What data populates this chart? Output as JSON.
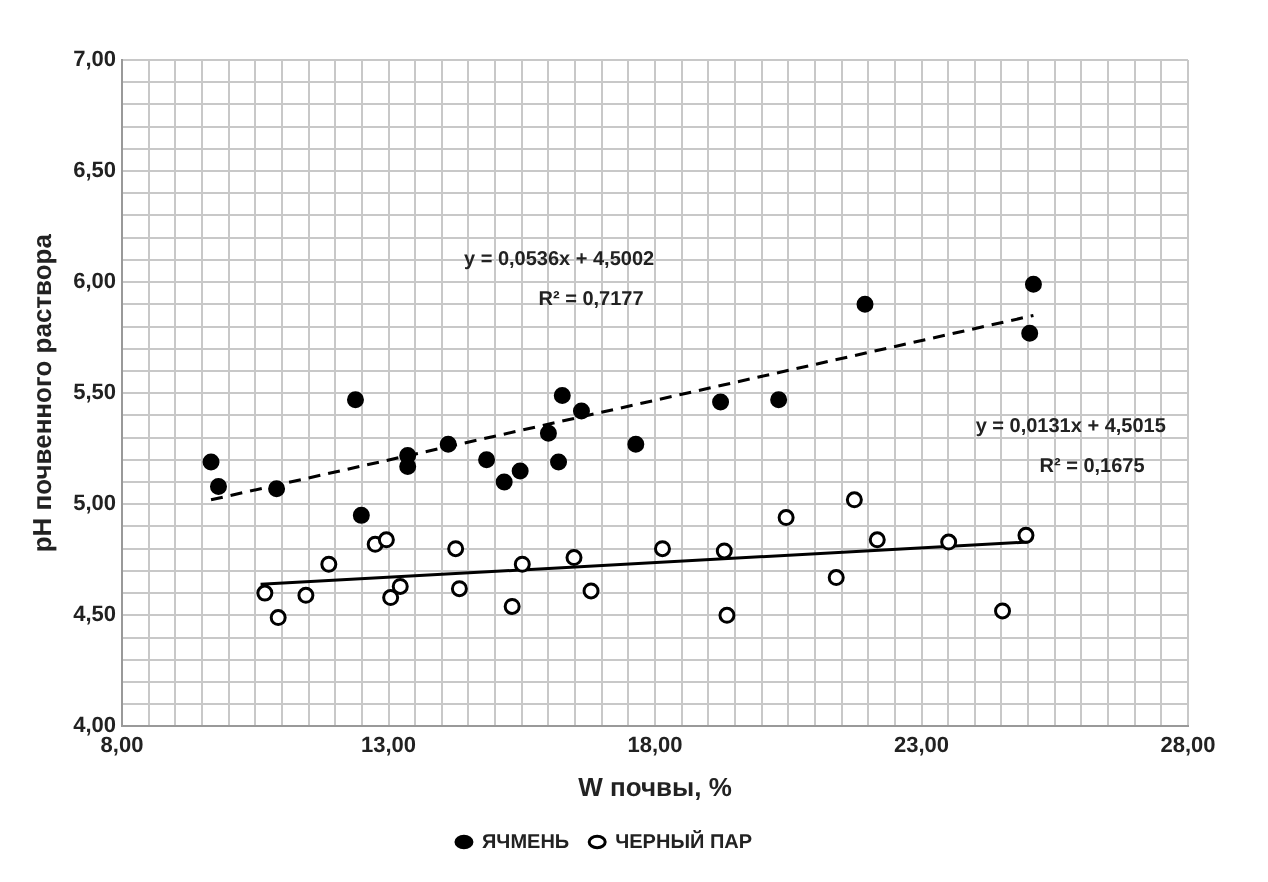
{
  "chart_data": {
    "type": "scatter",
    "xlabel": "W почвы, %",
    "ylabel": "pH почвенного раствора",
    "xlim": [
      8,
      28
    ],
    "xticks": [
      {
        "value": 8,
        "label": "8,00"
      },
      {
        "value": 8.5,
        "label": null
      },
      {
        "value": 9,
        "label": null
      },
      {
        "value": 9.5,
        "label": null
      },
      {
        "value": 10,
        "label": null
      },
      {
        "value": 10.5,
        "label": null
      },
      {
        "value": 11,
        "label": null
      },
      {
        "value": 11.5,
        "label": null
      },
      {
        "value": 12,
        "label": null
      },
      {
        "value": 12.5,
        "label": null
      },
      {
        "value": 13,
        "label": "13,00"
      },
      {
        "value": 13.5,
        "label": null
      },
      {
        "value": 14,
        "label": null
      },
      {
        "value": 14.5,
        "label": null
      },
      {
        "value": 15,
        "label": null
      },
      {
        "value": 15.5,
        "label": null
      },
      {
        "value": 16,
        "label": null
      },
      {
        "value": 16.5,
        "label": null
      },
      {
        "value": 17,
        "label": null
      },
      {
        "value": 17.5,
        "label": null
      },
      {
        "value": 18,
        "label": "18,00"
      },
      {
        "value": 18.5,
        "label": null
      },
      {
        "value": 19,
        "label": null
      },
      {
        "value": 19.5,
        "label": null
      },
      {
        "value": 20,
        "label": null
      },
      {
        "value": 20.5,
        "label": null
      },
      {
        "value": 21,
        "label": null
      },
      {
        "value": 21.5,
        "label": null
      },
      {
        "value": 22,
        "label": null
      },
      {
        "value": 22.5,
        "label": null
      },
      {
        "value": 23,
        "label": "23,00"
      },
      {
        "value": 23.5,
        "label": null
      },
      {
        "value": 24,
        "label": null
      },
      {
        "value": 24.5,
        "label": null
      },
      {
        "value": 25,
        "label": null
      },
      {
        "value": 25.5,
        "label": null
      },
      {
        "value": 26,
        "label": null
      },
      {
        "value": 26.5,
        "label": null
      },
      {
        "value": 27,
        "label": null
      },
      {
        "value": 27.5,
        "label": null
      },
      {
        "value": 28,
        "label": "28,00"
      }
    ],
    "ylim": [
      4,
      7
    ],
    "yticks": [
      {
        "value": 4,
        "label": "4,00"
      },
      {
        "value": 4.1,
        "label": null
      },
      {
        "value": 4.2,
        "label": null
      },
      {
        "value": 4.3,
        "label": null
      },
      {
        "value": 4.4,
        "label": null
      },
      {
        "value": 4.5,
        "label": "4,50"
      },
      {
        "value": 4.6,
        "label": null
      },
      {
        "value": 4.7,
        "label": null
      },
      {
        "value": 4.8,
        "label": null
      },
      {
        "value": 4.9,
        "label": null
      },
      {
        "value": 5,
        "label": "5,00"
      },
      {
        "value": 5.1,
        "label": null
      },
      {
        "value": 5.2,
        "label": null
      },
      {
        "value": 5.3,
        "label": null
      },
      {
        "value": 5.4,
        "label": null
      },
      {
        "value": 5.5,
        "label": "5,50"
      },
      {
        "value": 5.6,
        "label": null
      },
      {
        "value": 5.7,
        "label": null
      },
      {
        "value": 5.8,
        "label": null
      },
      {
        "value": 5.9,
        "label": null
      },
      {
        "value": 6,
        "label": "6,00"
      },
      {
        "value": 6.1,
        "label": null
      },
      {
        "value": 6.2,
        "label": null
      },
      {
        "value": 6.3,
        "label": null
      },
      {
        "value": 6.4,
        "label": null
      },
      {
        "value": 6.5,
        "label": "6,50"
      },
      {
        "value": 6.6,
        "label": null
      },
      {
        "value": 6.7,
        "label": null
      },
      {
        "value": 6.8,
        "label": null
      },
      {
        "value": 6.9,
        "label": null
      },
      {
        "value": 7,
        "label": "7,00"
      }
    ],
    "grid": true,
    "legend": "bottom",
    "series": [
      {
        "name": "ЯЧМЕНЬ",
        "marker": "circle",
        "color": "#000000",
        "x": [
          9.67,
          9.81,
          10.9,
          12.38,
          12.49,
          13.36,
          13.36,
          14.12,
          14.84,
          15.17,
          15.47,
          16.0,
          16.19,
          16.26,
          16.62,
          17.64,
          19.23,
          20.32,
          21.94,
          25.1,
          25.03
        ],
        "values": [
          5.19,
          5.08,
          5.07,
          5.47,
          4.95,
          5.22,
          5.17,
          5.27,
          5.2,
          5.1,
          5.15,
          5.32,
          5.19,
          5.49,
          5.42,
          5.27,
          5.46,
          5.47,
          5.9,
          5.99,
          5.77
        ]
      },
      {
        "name": "ЧЕРНЫЙ ПАР",
        "marker": "circle",
        "color": "#000000",
        "x": [
          10.68,
          10.93,
          11.45,
          11.88,
          12.75,
          12.96,
          13.04,
          13.22,
          14.26,
          14.33,
          15.32,
          15.51,
          16.48,
          16.8,
          18.14,
          19.3,
          19.35,
          20.46,
          21.4,
          21.74,
          22.17,
          23.51,
          24.52,
          24.96
        ],
        "values": [
          4.6,
          4.49,
          4.59,
          4.73,
          4.82,
          4.84,
          4.58,
          4.63,
          4.8,
          4.62,
          4.54,
          4.73,
          4.76,
          4.61,
          4.8,
          4.79,
          4.5,
          4.94,
          4.67,
          5.02,
          4.84,
          4.83,
          4.52,
          4.86
        ]
      },
      {
        "type": "line",
        "color": "#000000",
        "line_style": "dashed",
        "x": [
          9.67,
          25.1
        ],
        "values": [
          5.02,
          5.85
        ]
      },
      {
        "type": "line",
        "color": "#000000",
        "line_style": "solid",
        "x": [
          10.6,
          25.0
        ],
        "values": [
          4.64,
          4.83
        ]
      }
    ],
    "annotations": [
      "y = 0,0536x + 4,5002",
      "R² = 0,7177",
      "y = 0,0131x + 4,5015",
      "R² = 0,1675"
    ]
  }
}
